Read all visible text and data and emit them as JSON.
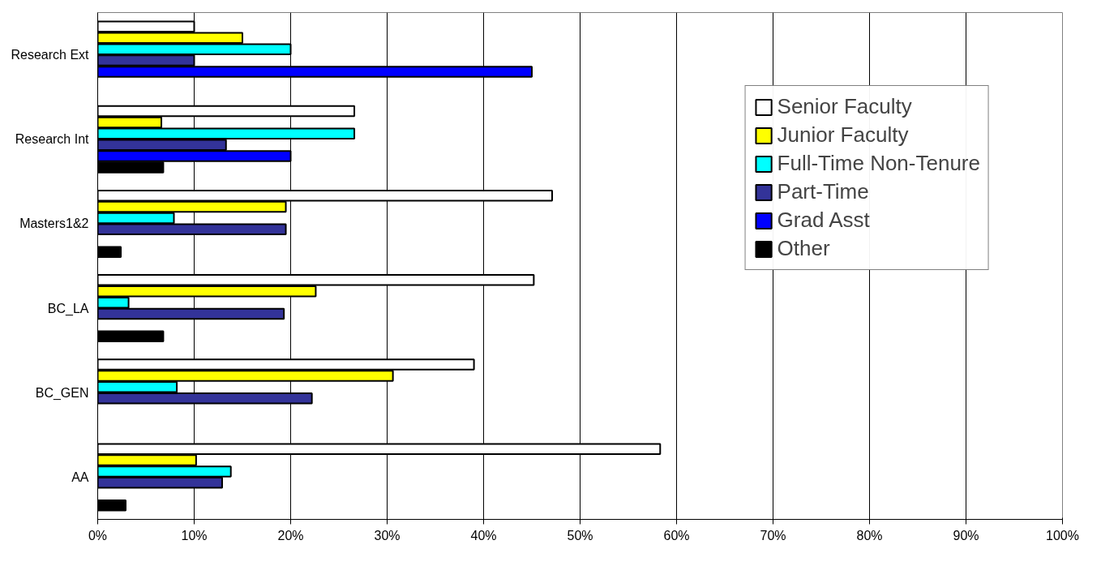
{
  "chart_data": {
    "type": "bar",
    "orientation": "horizontal",
    "categories": [
      "Research Ext",
      "Research Int",
      "Masters1&2",
      "BC_LA",
      "BC_GEN",
      "AA"
    ],
    "series": [
      {
        "name": "Senior Faculty",
        "color": "#ffffff",
        "values": [
          10.0,
          26.6,
          47.1,
          45.2,
          39.0,
          58.3
        ]
      },
      {
        "name": "Junior Faculty",
        "color": "#ffff00",
        "values": [
          15.0,
          6.6,
          19.5,
          22.6,
          30.6,
          10.2
        ]
      },
      {
        "name": "Full-Time Non-Tenure",
        "color": "#00ffff",
        "values": [
          20.0,
          26.6,
          7.9,
          3.2,
          8.2,
          13.8
        ]
      },
      {
        "name": "Part-Time",
        "color": "#333399",
        "values": [
          10.0,
          13.3,
          19.5,
          19.3,
          22.2,
          12.9
        ]
      },
      {
        "name": "Grad Asst",
        "color": "#0000ff",
        "values": [
          45.0,
          20.0,
          null,
          null,
          null,
          null
        ]
      },
      {
        "name": "Other",
        "color": "#000000",
        "values": [
          null,
          6.8,
          2.4,
          6.8,
          null,
          2.9
        ]
      }
    ],
    "xlim": [
      0,
      100
    ],
    "xticks": [
      {
        "value": 0,
        "label": "0%"
      },
      {
        "value": 10,
        "label": "10%"
      },
      {
        "value": 20,
        "label": "20%"
      },
      {
        "value": 30,
        "label": "30%"
      },
      {
        "value": 40,
        "label": "40%"
      },
      {
        "value": 50,
        "label": "50%"
      },
      {
        "value": 60,
        "label": "60%"
      },
      {
        "value": 70,
        "label": "70%"
      },
      {
        "value": 80,
        "label": "80%"
      },
      {
        "value": 90,
        "label": "90%"
      },
      {
        "value": 100,
        "label": "100%"
      }
    ],
    "grid": "x",
    "legend": "top right"
  }
}
